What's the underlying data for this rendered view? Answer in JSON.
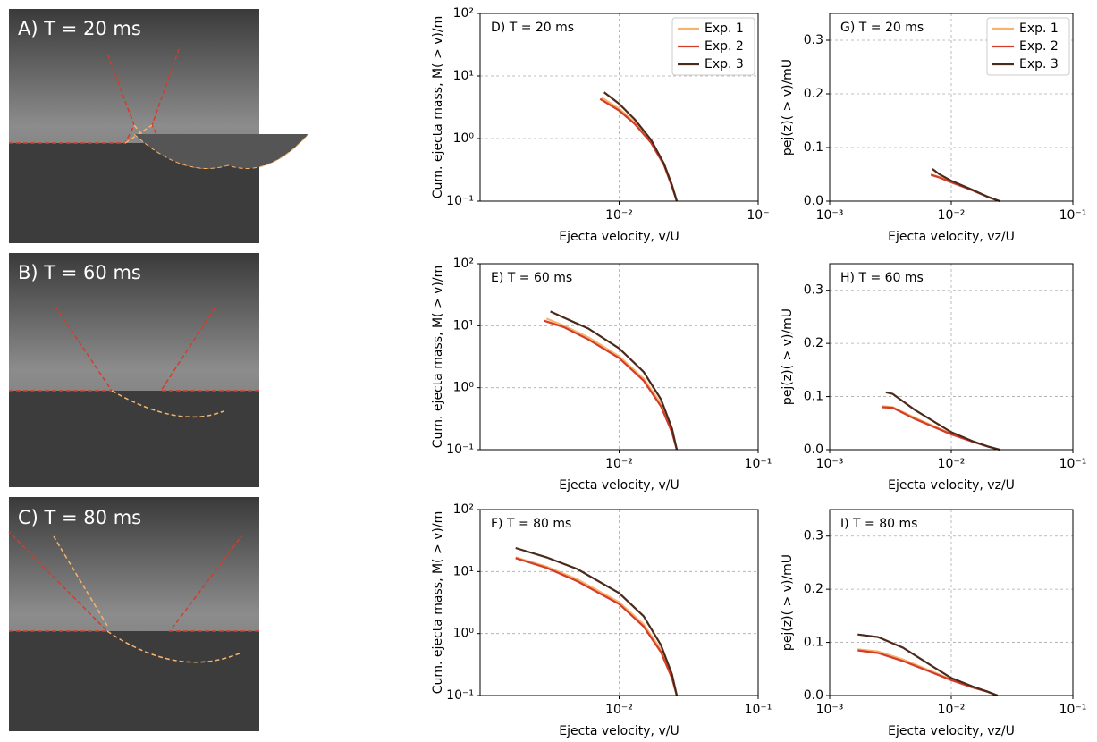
{
  "panels": [
    {
      "label": "A) T = 20 ms"
    },
    {
      "label": "B) T = 60 ms"
    },
    {
      "label": "C) T = 80 ms"
    }
  ],
  "chart_data": [
    {
      "type": "line",
      "annotation": "D) T = 20 ms",
      "x_label": "Ejecta velocity, v/U",
      "y_label": "Cum. ejecta mass, M( > v)/m",
      "x_log": true,
      "y_log": true,
      "grid": true,
      "legend": "upper right",
      "xlim": [
        0.001,
        0.1
      ],
      "xticks": [
        {
          "value": 0.01,
          "label": "10⁻²"
        },
        {
          "value": 0.1,
          "label": "10⁻"
        }
      ],
      "ylim": [
        0.1,
        100
      ],
      "yticks": [
        {
          "value": 0.1,
          "label": "10⁻¹"
        },
        {
          "value": 1,
          "label": "10⁰"
        },
        {
          "value": 10,
          "label": "10¹"
        },
        {
          "value": 100,
          "label": "10²"
        }
      ],
      "series": [
        {
          "name": "Exp. 1",
          "color": "#f7b36b",
          "x": [
            0.0075,
            0.01,
            0.013,
            0.017,
            0.021,
            0.024,
            0.026
          ],
          "values": [
            4.5,
            3.0,
            1.8,
            0.9,
            0.4,
            0.18,
            0.1
          ]
        },
        {
          "name": "Exp. 2",
          "color": "#d43c2a",
          "x": [
            0.0073,
            0.01,
            0.013,
            0.017,
            0.021,
            0.024,
            0.026
          ],
          "values": [
            4.3,
            2.8,
            1.7,
            0.85,
            0.38,
            0.17,
            0.1
          ]
        },
        {
          "name": "Exp. 3",
          "color": "#4a2a1c",
          "x": [
            0.0078,
            0.01,
            0.013,
            0.017,
            0.021,
            0.024,
            0.026
          ],
          "values": [
            5.5,
            3.6,
            2.0,
            0.95,
            0.4,
            0.18,
            0.1
          ]
        }
      ]
    },
    {
      "type": "line",
      "annotation": "E) T = 60 ms",
      "x_label": "Ejecta velocity, v/U",
      "y_label": "Cum. ejecta mass, M( > v)/m",
      "x_log": true,
      "y_log": true,
      "grid": true,
      "xlim": [
        0.001,
        0.1
      ],
      "xticks": [
        {
          "value": 0.01,
          "label": "10⁻²"
        },
        {
          "value": 0.1,
          "label": "10⁻¹"
        }
      ],
      "ylim": [
        0.1,
        100
      ],
      "yticks": [
        {
          "value": 0.1,
          "label": "10⁻¹"
        },
        {
          "value": 1,
          "label": "10⁰"
        },
        {
          "value": 10,
          "label": "10¹"
        },
        {
          "value": 100,
          "label": "10²"
        }
      ],
      "series": [
        {
          "color": "#f7b36b",
          "x": [
            0.003,
            0.004,
            0.006,
            0.01,
            0.015,
            0.02,
            0.024,
            0.026
          ],
          "values": [
            13,
            10,
            6.5,
            3.2,
            1.4,
            0.55,
            0.2,
            0.1
          ]
        },
        {
          "color": "#d43c2a",
          "x": [
            0.0029,
            0.004,
            0.006,
            0.01,
            0.015,
            0.02,
            0.024,
            0.026
          ],
          "values": [
            12,
            9.5,
            6,
            3,
            1.3,
            0.5,
            0.19,
            0.1
          ]
        },
        {
          "color": "#4a2a1c",
          "x": [
            0.0032,
            0.004,
            0.006,
            0.01,
            0.015,
            0.02,
            0.024,
            0.026
          ],
          "values": [
            17,
            13.5,
            9,
            4.3,
            1.8,
            0.65,
            0.22,
            0.1
          ]
        }
      ]
    },
    {
      "type": "line",
      "annotation": "F) T = 80 ms",
      "x_label": "Ejecta velocity, v/U",
      "y_label": "Cum. ejecta mass, M( > v)/m",
      "x_log": true,
      "y_log": true,
      "grid": true,
      "xlim": [
        0.001,
        0.1
      ],
      "xticks": [
        {
          "value": 0.01,
          "label": "10⁻²"
        },
        {
          "value": 0.1,
          "label": "10⁻¹"
        }
      ],
      "ylim": [
        0.1,
        100
      ],
      "yticks": [
        {
          "value": 0.1,
          "label": "10⁻¹"
        },
        {
          "value": 1,
          "label": "10⁰"
        },
        {
          "value": 10,
          "label": "10¹"
        },
        {
          "value": 100,
          "label": "10²"
        }
      ],
      "series": [
        {
          "color": "#f7b36b",
          "x": [
            0.0018,
            0.003,
            0.005,
            0.01,
            0.015,
            0.02,
            0.024,
            0.026
          ],
          "values": [
            17,
            12,
            7.5,
            3.2,
            1.4,
            0.55,
            0.2,
            0.1
          ]
        },
        {
          "color": "#d43c2a",
          "x": [
            0.0018,
            0.003,
            0.005,
            0.01,
            0.015,
            0.02,
            0.024,
            0.026
          ],
          "values": [
            16.5,
            11.5,
            7,
            3,
            1.3,
            0.5,
            0.19,
            0.1
          ]
        },
        {
          "color": "#4a2a1c",
          "x": [
            0.0018,
            0.003,
            0.005,
            0.01,
            0.015,
            0.02,
            0.024,
            0.026
          ],
          "values": [
            24,
            17,
            11,
            4.5,
            1.9,
            0.65,
            0.22,
            0.1
          ]
        }
      ]
    },
    {
      "type": "line",
      "annotation": "G) T = 20 ms",
      "x_label": "Ejecta velocity, vz/U",
      "y_label": "pej(z)( > v)/mU",
      "x_log": true,
      "y_log": false,
      "grid": true,
      "legend": "upper right",
      "xlim": [
        0.001,
        0.1
      ],
      "xticks": [
        {
          "value": 0.001,
          "label": "10⁻³"
        },
        {
          "value": 0.01,
          "label": "10⁻²"
        },
        {
          "value": 0.1,
          "label": "10⁻¹"
        }
      ],
      "ylim": [
        0,
        0.35
      ],
      "yticks": [
        {
          "value": 0,
          "label": "0.0"
        },
        0.1,
        0.2,
        0.3
      ],
      "series": [
        {
          "name": "Exp. 1",
          "color": "#f7b36b",
          "x": [
            0.0068,
            0.008,
            0.01,
            0.015,
            0.02,
            0.025
          ],
          "values": [
            0.05,
            0.045,
            0.036,
            0.02,
            0.008,
            0
          ]
        },
        {
          "name": "Exp. 2",
          "color": "#d43c2a",
          "x": [
            0.0068,
            0.008,
            0.01,
            0.015,
            0.02,
            0.025
          ],
          "values": [
            0.049,
            0.044,
            0.035,
            0.02,
            0.008,
            0
          ]
        },
        {
          "name": "Exp. 3",
          "color": "#4a2a1c",
          "x": [
            0.007,
            0.008,
            0.01,
            0.015,
            0.02,
            0.025
          ],
          "values": [
            0.06,
            0.05,
            0.038,
            0.021,
            0.008,
            0
          ]
        }
      ]
    },
    {
      "type": "line",
      "annotation": "H) T = 60 ms",
      "x_label": "Ejecta velocity, vz/U",
      "y_label": "pej(z)( > v)/mU",
      "x_log": true,
      "y_log": false,
      "grid": true,
      "xlim": [
        0.001,
        0.1
      ],
      "xticks": [
        {
          "value": 0.001,
          "label": "10⁻³"
        },
        {
          "value": 0.01,
          "label": "10⁻²"
        },
        {
          "value": 0.1,
          "label": "10⁻¹"
        }
      ],
      "ylim": [
        0,
        0.35
      ],
      "yticks": [
        {
          "value": 0,
          "label": "0.0"
        },
        0.1,
        0.2,
        0.3
      ],
      "series": [
        {
          "color": "#f7b36b",
          "x": [
            0.0027,
            0.0033,
            0.005,
            0.01,
            0.015,
            0.02,
            0.025
          ],
          "values": [
            0.082,
            0.08,
            0.06,
            0.03,
            0.015,
            0.006,
            0
          ]
        },
        {
          "color": "#d43c2a",
          "x": [
            0.0027,
            0.0033,
            0.005,
            0.01,
            0.015,
            0.02,
            0.025
          ],
          "values": [
            0.08,
            0.079,
            0.058,
            0.029,
            0.015,
            0.006,
            0
          ]
        },
        {
          "color": "#4a2a1c",
          "x": [
            0.0029,
            0.0033,
            0.005,
            0.01,
            0.015,
            0.02,
            0.025
          ],
          "values": [
            0.108,
            0.105,
            0.075,
            0.033,
            0.016,
            0.006,
            0
          ]
        }
      ]
    },
    {
      "type": "line",
      "annotation": "I) T = 80 ms",
      "x_label": "Ejecta velocity, vz/U",
      "y_label": "pej(z)( > v)/mU",
      "x_log": true,
      "y_log": false,
      "grid": true,
      "xlim": [
        0.001,
        0.1
      ],
      "xticks": [
        {
          "value": 0.001,
          "label": "10⁻³"
        },
        {
          "value": 0.01,
          "label": "10⁻²"
        },
        {
          "value": 0.1,
          "label": "10⁻¹"
        }
      ],
      "ylim": [
        0,
        0.35
      ],
      "yticks": [
        {
          "value": 0,
          "label": "0.0"
        },
        0.1,
        0.2,
        0.3
      ],
      "series": [
        {
          "color": "#f7b36b",
          "x": [
            0.0017,
            0.0025,
            0.004,
            0.007,
            0.01,
            0.015,
            0.02,
            0.024
          ],
          "values": [
            0.087,
            0.083,
            0.068,
            0.045,
            0.03,
            0.016,
            0.007,
            0
          ]
        },
        {
          "color": "#d43c2a",
          "x": [
            0.0017,
            0.0025,
            0.004,
            0.007,
            0.01,
            0.015,
            0.02,
            0.024
          ],
          "values": [
            0.085,
            0.08,
            0.065,
            0.043,
            0.029,
            0.015,
            0.007,
            0
          ]
        },
        {
          "color": "#4a2a1c",
          "x": [
            0.0017,
            0.0025,
            0.004,
            0.007,
            0.01,
            0.015,
            0.02,
            0.024
          ],
          "values": [
            0.115,
            0.11,
            0.09,
            0.055,
            0.033,
            0.017,
            0.007,
            0
          ]
        }
      ]
    }
  ]
}
